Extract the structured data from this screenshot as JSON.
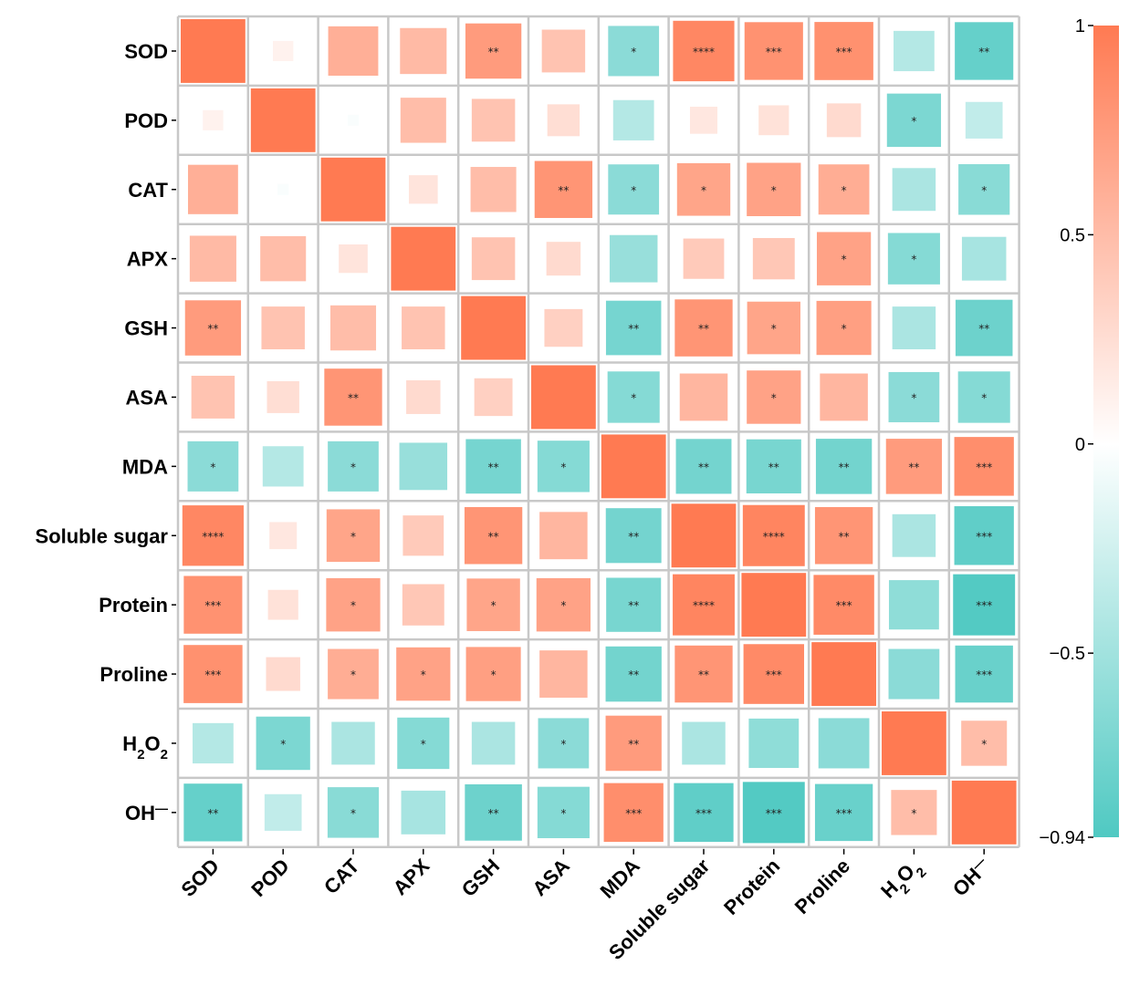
{
  "chart_data": {
    "type": "heatmap",
    "title": "",
    "variables": [
      "SOD",
      "POD",
      "CAT",
      "APX",
      "GSH",
      "ASA",
      "MDA",
      "Soluble sugar",
      "Protein",
      "Proline",
      "H2O2",
      "OH"
    ],
    "labels": [
      {
        "text": "SOD"
      },
      {
        "text": "POD"
      },
      {
        "text": "CAT"
      },
      {
        "text": "APX"
      },
      {
        "text": "GSH"
      },
      {
        "text": "ASA"
      },
      {
        "text": "MDA"
      },
      {
        "text": "Soluble sugar"
      },
      {
        "text": "Protein"
      },
      {
        "text": "Proline"
      },
      {
        "text": "H",
        "sub": "2",
        "rest": "O",
        "sub2": "2"
      },
      {
        "text": "OH",
        "sup": "—"
      }
    ],
    "correlations": [
      [
        1.0,
        0.1,
        0.6,
        0.52,
        0.75,
        0.45,
        -0.62,
        0.9,
        0.82,
        0.83,
        -0.4,
        -0.82
      ],
      [
        0.1,
        1.0,
        -0.03,
        0.5,
        0.45,
        0.25,
        -0.4,
        0.18,
        0.22,
        0.28,
        -0.7,
        -0.33
      ],
      [
        0.6,
        -0.03,
        1.0,
        0.2,
        0.5,
        0.8,
        -0.62,
        0.68,
        0.7,
        0.62,
        -0.45,
        -0.63
      ],
      [
        0.52,
        0.5,
        0.2,
        1.0,
        0.45,
        0.28,
        -0.55,
        0.4,
        0.42,
        0.7,
        -0.65,
        -0.47
      ],
      [
        0.75,
        0.45,
        0.5,
        0.45,
        1.0,
        0.35,
        -0.73,
        0.8,
        0.68,
        0.72,
        -0.45,
        -0.78
      ],
      [
        0.45,
        0.25,
        0.8,
        0.28,
        0.35,
        1.0,
        -0.65,
        0.55,
        0.7,
        0.55,
        -0.62,
        -0.65
      ],
      [
        -0.62,
        -0.4,
        -0.62,
        -0.55,
        -0.73,
        -0.65,
        1.0,
        -0.74,
        -0.72,
        -0.75,
        0.75,
        0.85
      ],
      [
        0.9,
        0.18,
        0.68,
        0.4,
        0.8,
        0.55,
        -0.74,
        1.0,
        0.92,
        0.8,
        -0.45,
        -0.85
      ],
      [
        0.82,
        0.22,
        0.7,
        0.42,
        0.68,
        0.7,
        -0.72,
        0.92,
        1.0,
        0.88,
        -0.6,
        -0.92
      ],
      [
        0.83,
        0.28,
        0.62,
        0.7,
        0.72,
        0.55,
        -0.75,
        0.8,
        0.88,
        1.0,
        -0.62,
        -0.8
      ],
      [
        -0.4,
        -0.7,
        -0.45,
        -0.65,
        -0.45,
        -0.62,
        0.75,
        -0.45,
        -0.6,
        -0.62,
        1.0,
        0.5
      ],
      [
        -0.82,
        -0.33,
        -0.63,
        -0.47,
        -0.78,
        -0.65,
        0.85,
        -0.85,
        -0.92,
        -0.8,
        0.5,
        1.0
      ]
    ],
    "significance": [
      [
        "",
        "",
        "",
        "",
        "**",
        "",
        "*",
        "****",
        "***",
        "***",
        "",
        "**"
      ],
      [
        "",
        "",
        "",
        "",
        "",
        "",
        "",
        "",
        "",
        "",
        "*",
        ""
      ],
      [
        "",
        "",
        "",
        "",
        "",
        "**",
        "*",
        "*",
        "*",
        "*",
        "",
        "*"
      ],
      [
        "",
        "",
        "",
        "",
        "",
        "",
        "",
        "",
        "",
        "*",
        "*",
        ""
      ],
      [
        "**",
        "",
        "",
        "",
        "",
        "",
        "**",
        "**",
        "*",
        "*",
        "",
        "**"
      ],
      [
        "",
        "",
        "**",
        "",
        "",
        "",
        "*",
        "",
        "*",
        "",
        "*",
        "*"
      ],
      [
        "*",
        "",
        "*",
        "",
        "**",
        "*",
        "",
        "**",
        "**",
        "**",
        "**",
        "***"
      ],
      [
        "****",
        "",
        "*",
        "",
        "**",
        "",
        "**",
        "",
        "****",
        "**",
        "",
        "***"
      ],
      [
        "***",
        "",
        "*",
        "",
        "*",
        "*",
        "**",
        "****",
        "",
        "***",
        "",
        "***"
      ],
      [
        "***",
        "",
        "*",
        "*",
        "*",
        "",
        "**",
        "**",
        "***",
        "",
        "",
        "***"
      ],
      [
        "",
        "*",
        "",
        "*",
        "",
        "*",
        "**",
        "",
        "",
        "",
        "",
        "*"
      ],
      [
        "**",
        "",
        "*",
        "",
        "**",
        "*",
        "***",
        "***",
        "***",
        "***",
        "*",
        ""
      ]
    ],
    "colorbar": {
      "min": -0.94,
      "max": 1,
      "ticks": [
        1,
        0.5,
        0,
        -0.5,
        -0.94
      ],
      "tick_labels": [
        "1",
        "0.5",
        "0",
        "−0.5",
        "−0.94"
      ],
      "positive_color": "#FF7A52",
      "zero_color": "#FFFFFF",
      "negative_color": "#4FC9C2"
    },
    "grid_color": "#C8C8C8"
  }
}
